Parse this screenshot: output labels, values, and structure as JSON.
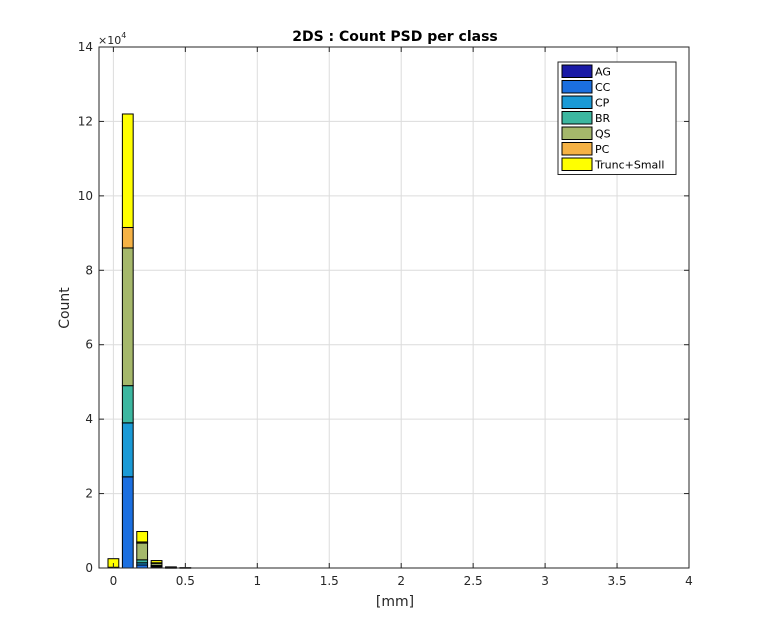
{
  "chart_data": {
    "type": "bar",
    "stacked": true,
    "title": "2DS : Count PSD per class",
    "xlabel": "[mm]",
    "ylabel": "Count",
    "y_exponent_label": "×10",
    "y_exponent": "4",
    "xlim": [
      -0.1,
      4
    ],
    "ylim": [
      0,
      140000
    ],
    "grid": true,
    "legend_placement": "top-right",
    "x_ticks": [
      0,
      0.5,
      1,
      1.5,
      2,
      2.5,
      3,
      3.5,
      4
    ],
    "x_tick_labels": [
      "0",
      "0.5",
      "1",
      "1.5",
      "2",
      "2.5",
      "3",
      "3.5",
      "4"
    ],
    "y_ticks": [
      0,
      20000,
      40000,
      60000,
      80000,
      100000,
      120000,
      140000
    ],
    "y_tick_labels": [
      "0",
      "2",
      "4",
      "6",
      "8",
      "10",
      "12",
      "14"
    ],
    "bin_width": 0.075,
    "x": [
      0,
      0.1,
      0.2,
      0.3,
      0.4,
      0.5
    ],
    "series": [
      {
        "name": "AG",
        "color": "#1a1aa6",
        "values": [
          0,
          0,
          0,
          0,
          0,
          0
        ]
      },
      {
        "name": "CC",
        "color": "#1b6fe0",
        "values": [
          0,
          24500,
          800,
          200,
          0,
          0
        ]
      },
      {
        "name": "CP",
        "color": "#1a9ad6",
        "values": [
          0,
          14500,
          600,
          200,
          0,
          0
        ]
      },
      {
        "name": "BR",
        "color": "#3cb7a0",
        "values": [
          0,
          10000,
          800,
          300,
          0,
          0
        ]
      },
      {
        "name": "QS",
        "color": "#a5b86b",
        "values": [
          200,
          37000,
          4500,
          600,
          100,
          0
        ]
      },
      {
        "name": "PC",
        "color": "#f5b245",
        "values": [
          0,
          5500,
          300,
          100,
          0,
          0
        ]
      },
      {
        "name": "Trunc+Small",
        "color": "#ffff00",
        "values": [
          2300,
          30500,
          2800,
          600,
          200,
          100
        ]
      }
    ]
  }
}
